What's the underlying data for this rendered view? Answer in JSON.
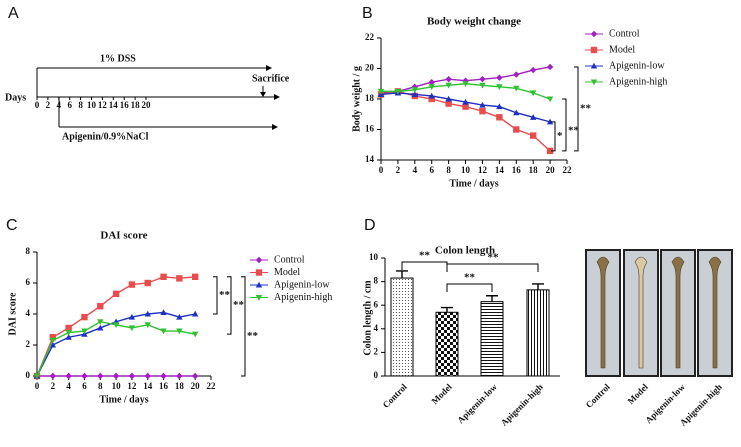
{
  "panels": [
    "A",
    "B",
    "C",
    "D"
  ],
  "timeline": {
    "axis_label": "Days",
    "ticks": [
      0,
      2,
      4,
      6,
      8,
      10,
      12,
      14,
      16,
      18,
      20
    ],
    "dss": "1% DSS",
    "sacrifice": "Sacrifice",
    "treatment": "Apigenin/0.9%NaCl"
  },
  "chart_data": [
    {
      "type": "line",
      "title": "Body weight change",
      "x_label": "Time / days",
      "y_label": "Body weight / g",
      "x": [
        0,
        2,
        4,
        6,
        8,
        10,
        12,
        14,
        16,
        18,
        20
      ],
      "xlim": [
        0,
        22
      ],
      "xticks": [
        0,
        2,
        4,
        6,
        8,
        10,
        12,
        14,
        16,
        18,
        20,
        22
      ],
      "ylim": [
        14,
        22
      ],
      "yticks": [
        14,
        16,
        18,
        20,
        22
      ],
      "series": [
        {
          "name": "Control",
          "color": "#a020c0",
          "marker": "diamond",
          "values": [
            18.4,
            18.5,
            18.8,
            19.1,
            19.3,
            19.2,
            19.3,
            19.4,
            19.6,
            19.9,
            20.1
          ]
        },
        {
          "name": "Model",
          "color": "#e84c4c",
          "marker": "square",
          "values": [
            18.3,
            18.5,
            18.2,
            18.0,
            17.7,
            17.5,
            17.2,
            16.8,
            16.0,
            15.6,
            14.6
          ]
        },
        {
          "name": "Apigenin-low",
          "color": "#2030c0",
          "marker": "triangle",
          "values": [
            18.3,
            18.4,
            18.3,
            18.2,
            18.0,
            17.8,
            17.6,
            17.5,
            17.1,
            16.8,
            16.5
          ]
        },
        {
          "name": "Apigenin-high",
          "color": "#30c030",
          "marker": "triangle-down",
          "values": [
            18.5,
            18.5,
            18.6,
            18.8,
            18.9,
            19.0,
            18.9,
            18.8,
            18.7,
            18.4,
            18.0
          ]
        }
      ],
      "significance": [
        "*",
        "**",
        "**"
      ]
    },
    {
      "type": "line",
      "title": "DAI score",
      "x_label": "Time / days",
      "y_label": "DAI score",
      "x": [
        0,
        2,
        4,
        6,
        8,
        10,
        12,
        14,
        16,
        18,
        20
      ],
      "xlim": [
        0,
        22
      ],
      "xticks": [
        0,
        2,
        4,
        6,
        8,
        10,
        12,
        14,
        16,
        18,
        20,
        22
      ],
      "ylim": [
        0,
        8
      ],
      "yticks": [
        0,
        2,
        4,
        6,
        8
      ],
      "series": [
        {
          "name": "Control",
          "color": "#a020c0",
          "marker": "diamond",
          "values": [
            0,
            0,
            0,
            0,
            0,
            0,
            0,
            0,
            0,
            0,
            0
          ]
        },
        {
          "name": "Model",
          "color": "#e84c4c",
          "marker": "square",
          "values": [
            0,
            2.5,
            3.1,
            3.8,
            4.5,
            5.3,
            5.9,
            6.0,
            6.4,
            6.3,
            6.4
          ]
        },
        {
          "name": "Apigenin-low",
          "color": "#2030c0",
          "marker": "triangle",
          "values": [
            0,
            2.0,
            2.5,
            2.7,
            3.1,
            3.5,
            3.8,
            4.0,
            4.1,
            3.8,
            4.0
          ]
        },
        {
          "name": "Apigenin-high",
          "color": "#30c030",
          "marker": "triangle-down",
          "values": [
            0,
            2.3,
            2.8,
            2.9,
            3.5,
            3.3,
            3.1,
            3.3,
            2.9,
            2.9,
            2.7
          ]
        }
      ],
      "significance": [
        "**",
        "**",
        "**"
      ]
    },
    {
      "type": "bar",
      "title": "Colon length",
      "y_label": "Colon length / cm",
      "categories": [
        "Control",
        "Model",
        "Apigenin-low",
        "Apigenin-high"
      ],
      "values": [
        8.3,
        5.4,
        6.3,
        7.3
      ],
      "errors": [
        0.6,
        0.4,
        0.5,
        0.5
      ],
      "ylim": [
        0,
        10
      ],
      "yticks": [
        0,
        2,
        4,
        6,
        8,
        10
      ],
      "significance": [
        "**",
        "**",
        "**"
      ]
    }
  ],
  "photos": {
    "labels": [
      "Control",
      "Model",
      "Apigenin-low",
      "Apigenin-high"
    ]
  }
}
